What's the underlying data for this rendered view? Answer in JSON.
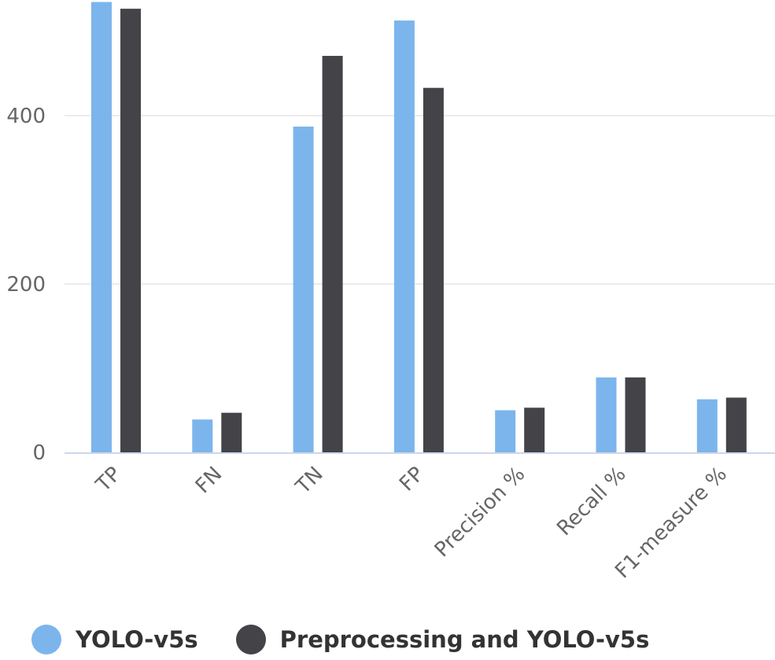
{
  "chart_data": {
    "type": "bar",
    "title": "",
    "xlabel": "",
    "ylabel": "",
    "categories": [
      "TP",
      "FN",
      "TN",
      "FP",
      "Precision %",
      "Recall %",
      "F1-measure %"
    ],
    "series": [
      {
        "name": "YOLO-v5s",
        "color": "#7cb5ec",
        "values": [
          535,
          39,
          387,
          513,
          50,
          89,
          63
        ]
      },
      {
        "name": "Preprocessing and YOLO-v5s",
        "color": "#434348",
        "values": [
          527,
          47,
          471,
          433,
          53,
          89,
          65
        ]
      }
    ],
    "ylim": [
      0,
      540
    ],
    "yticks": [
      0,
      200,
      400
    ],
    "grid": true,
    "legend_position": "bottom-left"
  },
  "legend": {
    "items": [
      {
        "label": "YOLO-v5s",
        "color": "#7cb5ec"
      },
      {
        "label": "Preprocessing and YOLO-v5s",
        "color": "#434348"
      }
    ]
  }
}
